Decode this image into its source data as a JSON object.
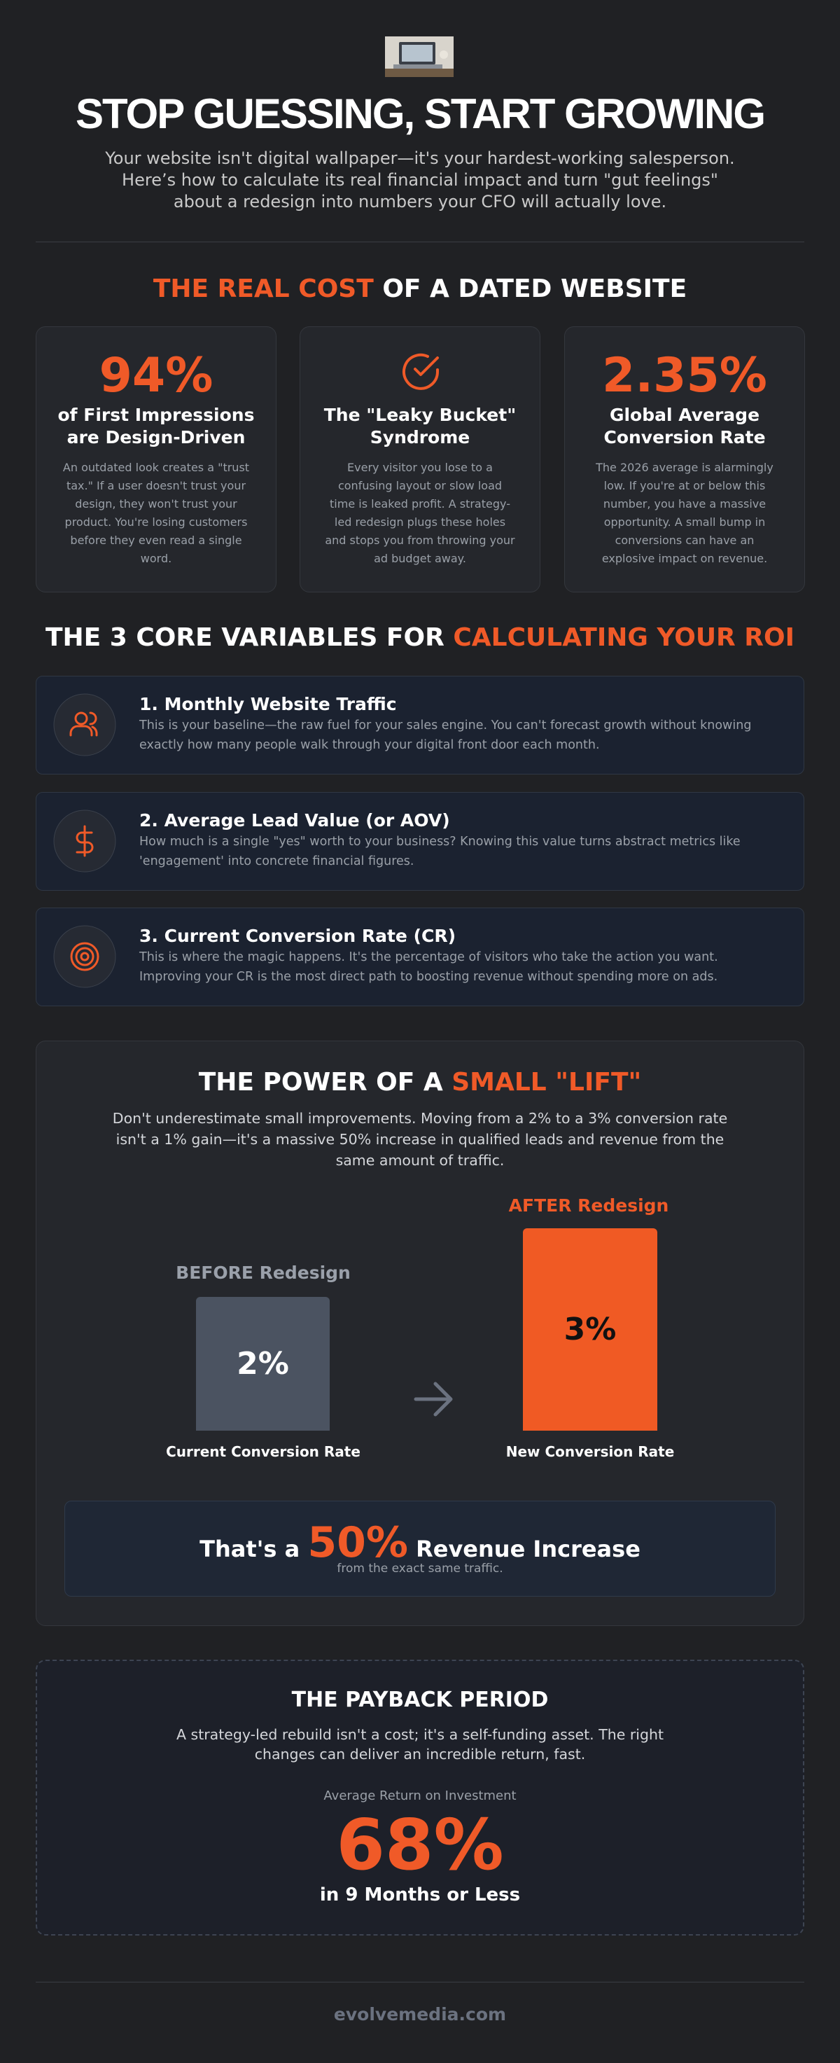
{
  "header": {
    "title": "STOP GUESSING, START GROWING",
    "subtitle": "Your website isn't digital wallpaper—it's your hardest-working salesperson. Here’s how to calculate its real financial impact and turn \"gut feelings\" about a redesign into numbers your CFO will actually love."
  },
  "cost_section": {
    "title_highlight": "THE REAL COST",
    "title_rest": "OF A DATED WEBSITE",
    "cards": [
      {
        "stat": "94%",
        "heading": "of First Impressions are Design-Driven",
        "text": "An outdated look creates a \"trust tax.\" If a user doesn't trust your design, they won't trust your product. You're losing customers before they even read a single word."
      },
      {
        "heading": "The \"Leaky Bucket\" Syndrome",
        "text": "Every visitor you lose to a confusing layout or slow load time is leaked profit. A strategy-led redesign plugs these holes and stops you from throwing your ad budget away."
      },
      {
        "stat": "2.35%",
        "heading": "Global Average Conversion Rate",
        "text": "The 2026 average is alarmingly low. If you're at or below this number, you have a massive opportunity. A small bump in conversions can have an explosive impact on revenue."
      }
    ]
  },
  "variables_section": {
    "title_rest": "THE 3 CORE VARIABLES FOR",
    "title_highlight": "CALCULATING YOUR ROI",
    "items": [
      {
        "title": "1. Monthly Website Traffic",
        "text": "This is your baseline—the raw fuel for your sales engine. You can't forecast growth without knowing exactly how many people walk through your digital front door each month."
      },
      {
        "title": "2. Average Lead Value (or AOV)",
        "text": "How much is a single \"yes\" worth to your business? Knowing this value turns abstract metrics like 'engagement' into concrete financial figures."
      },
      {
        "title": "3. Current Conversion Rate (CR)",
        "text": "This is where the magic happens. It's the percentage of visitors who take the action you want. Improving your CR is the most direct path to boosting revenue without spending more on ads."
      }
    ]
  },
  "lift_section": {
    "title_rest": "THE POWER OF A",
    "title_highlight": "SMALL \"LIFT\"",
    "text": "Don't underestimate small improvements. Moving from a 2% to a 3% conversion rate isn't a 1% gain—it's a massive 50% increase in qualified leads and revenue from the same amount of traffic.",
    "before": {
      "label": "BEFORE Redesign",
      "value": "2%",
      "caption": "Current Conversion Rate"
    },
    "after": {
      "label": "AFTER Redesign",
      "value": "3%",
      "caption": "New Conversion Rate"
    },
    "result": {
      "prefix": "That's a",
      "value": "50%",
      "suffix": "Revenue Increase",
      "note": "from the exact same traffic."
    }
  },
  "payback_section": {
    "title": "THE PAYBACK PERIOD",
    "text": "A strategy-led rebuild isn't a cost; it's a self-funding asset. The right changes can deliver an incredible return, fast.",
    "label": "Average Return on Investment",
    "value": "68%",
    "caption": "in 9 Months or Less"
  },
  "footer": {
    "text": "evolvemedia.com"
  }
}
